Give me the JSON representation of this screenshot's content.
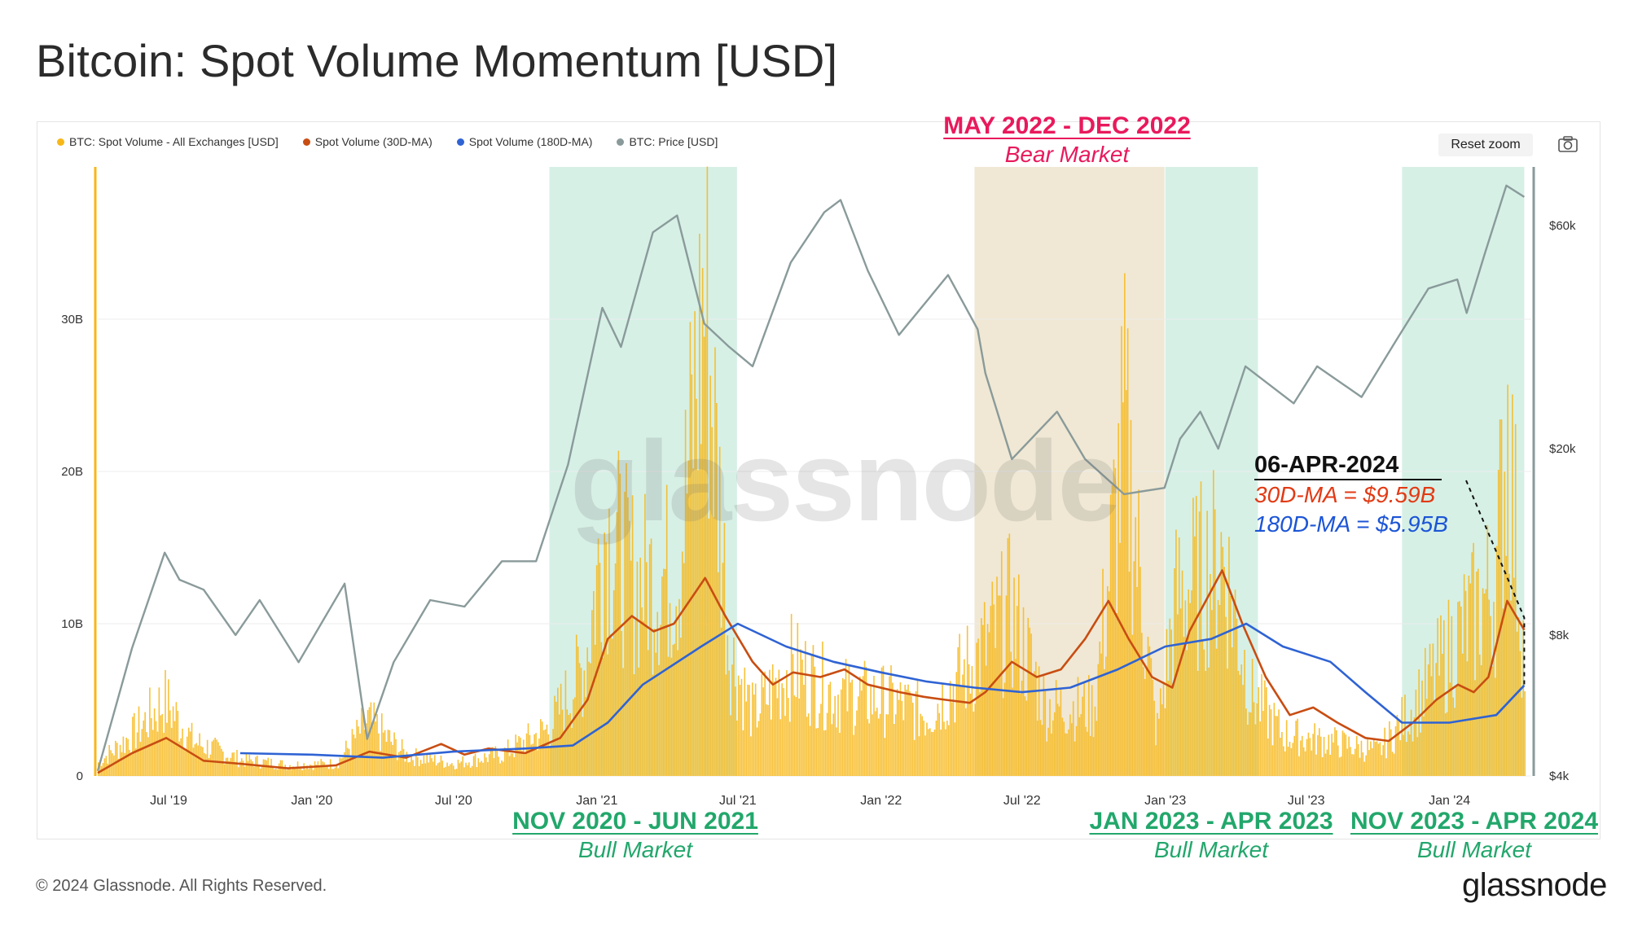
{
  "title": "Bitcoin: Spot Volume Momentum [USD]",
  "legend": [
    {
      "label": "BTC: Spot Volume - All Exchanges [USD]",
      "color": "#f7b718"
    },
    {
      "label": "Spot Volume (30D-MA)",
      "color": "#c84d12"
    },
    {
      "label": "Spot Volume (180D-MA)",
      "color": "#2f63d4"
    },
    {
      "label": "BTC: Price [USD]",
      "color": "#8a9a9a"
    }
  ],
  "controls": {
    "reset_zoom": "Reset zoom",
    "camera_icon": "camera-icon"
  },
  "watermark": "glassnode",
  "annotations": {
    "bear": {
      "head": "MAY 2022 - DEC 2022",
      "sub": "Bear Market"
    },
    "bull1": {
      "head": "NOV 2020 - JUN 2021",
      "sub": "Bull Market"
    },
    "bull2": {
      "head": "JAN 2023 - APR 2023",
      "sub": "Bull Market"
    },
    "bull3": {
      "head": "NOV 2023 - APR 2024",
      "sub": "Bull Market"
    }
  },
  "callout": {
    "date": "06-APR-2024",
    "ma30": "30D-MA = $9.59B",
    "ma180": "180D-MA = $5.95B"
  },
  "footer": {
    "copyright": "© 2024 Glassnode. All Rights Reserved.",
    "brand": "glassnode"
  },
  "chart_data": {
    "type": "line",
    "title": "Bitcoin: Spot Volume Momentum [USD]",
    "x_range": [
      "2019-04-01",
      "2024-04-15"
    ],
    "x_ticks": [
      {
        "label": "Jul '19",
        "date": "2019-07-01"
      },
      {
        "label": "Jan '20",
        "date": "2020-01-01"
      },
      {
        "label": "Jul '20",
        "date": "2020-07-01"
      },
      {
        "label": "Jan '21",
        "date": "2021-01-01"
      },
      {
        "label": "Jul '21",
        "date": "2021-07-01"
      },
      {
        "label": "Jan '22",
        "date": "2022-01-01"
      },
      {
        "label": "Jul '22",
        "date": "2022-07-01"
      },
      {
        "label": "Jan '23",
        "date": "2023-01-01"
      },
      {
        "label": "Jul '23",
        "date": "2023-07-01"
      },
      {
        "label": "Jan '24",
        "date": "2024-01-01"
      }
    ],
    "y_left": {
      "ticks": [
        "0",
        "10B",
        "20B",
        "30B"
      ],
      "values": [
        0,
        10000000000,
        20000000000,
        30000000000
      ],
      "ylim": [
        0,
        40000000000
      ]
    },
    "y_right": {
      "scale": "log",
      "ticks": [
        "$4k",
        "$8k",
        "$20k",
        "$60k"
      ],
      "values": [
        4000,
        8000,
        20000,
        60000
      ],
      "ylim": [
        4000,
        80000
      ]
    },
    "regions": [
      {
        "start": "2020-11-01",
        "end": "2021-06-30",
        "kind": "bull",
        "color": "#d6f0e6"
      },
      {
        "start": "2022-05-01",
        "end": "2022-12-31",
        "kind": "bear",
        "color": "#f0e8d4"
      },
      {
        "start": "2023-01-01",
        "end": "2023-04-30",
        "kind": "bull",
        "color": "#d6f0e6"
      },
      {
        "start": "2023-11-01",
        "end": "2024-04-06",
        "kind": "bull",
        "color": "#d6f0e6"
      }
    ],
    "series": [
      {
        "name": "BTC: Spot Volume - All Exchanges [USD]",
        "axis": "left",
        "color": "#f7b718",
        "points": [
          [
            "2019-04-01",
            1000000000.0
          ],
          [
            "2019-05-15",
            3000000000.0
          ],
          [
            "2019-06-25",
            5500000000.0
          ],
          [
            "2019-08-01",
            2500000000.0
          ],
          [
            "2019-10-01",
            1200000000.0
          ],
          [
            "2019-12-01",
            800000000.0
          ],
          [
            "2020-02-01",
            900000000.0
          ],
          [
            "2020-03-12",
            4000000000.0
          ],
          [
            "2020-05-01",
            1500000000.0
          ],
          [
            "2020-07-01",
            900000000.0
          ],
          [
            "2020-09-01",
            1600000000.0
          ],
          [
            "2020-11-01",
            3500000000.0
          ],
          [
            "2020-12-15",
            8000000000.0
          ],
          [
            "2021-01-10",
            18000000000.0
          ],
          [
            "2021-02-20",
            14000000000.0
          ],
          [
            "2021-04-15",
            15000000000.0
          ],
          [
            "2021-05-19",
            35000000000.0
          ],
          [
            "2021-06-20",
            9000000000.0
          ],
          [
            "2021-07-20",
            4500000000.0
          ],
          [
            "2021-09-07",
            8000000000.0
          ],
          [
            "2021-11-01",
            6000000000.0
          ],
          [
            "2022-01-10",
            5500000000.0
          ],
          [
            "2022-03-01",
            4500000000.0
          ],
          [
            "2022-05-10",
            9000000000.0
          ],
          [
            "2022-06-15",
            12000000000.0
          ],
          [
            "2022-08-01",
            5000000000.0
          ],
          [
            "2022-10-01",
            5000000000.0
          ],
          [
            "2022-11-09",
            25000000000.0
          ],
          [
            "2022-12-20",
            3000000000.0
          ],
          [
            "2023-01-15",
            13000000000.0
          ],
          [
            "2023-03-15",
            16000000000.0
          ],
          [
            "2023-04-20",
            6000000000.0
          ],
          [
            "2023-06-01",
            3000000000.0
          ],
          [
            "2023-08-01",
            2500000000.0
          ],
          [
            "2023-10-01",
            1800000000.0
          ],
          [
            "2023-11-15",
            5000000000.0
          ],
          [
            "2024-01-11",
            10000000000.0
          ],
          [
            "2024-02-28",
            14000000000.0
          ],
          [
            "2024-03-15",
            26000000000.0
          ],
          [
            "2024-04-06",
            8000000000.0
          ]
        ]
      },
      {
        "name": "Spot Volume (30D-MA)",
        "axis": "left",
        "color": "#c84d12",
        "points": [
          [
            "2019-04-01",
            200000000.0
          ],
          [
            "2019-05-15",
            1500000000.0
          ],
          [
            "2019-06-28",
            2500000000.0
          ],
          [
            "2019-08-15",
            1000000000.0
          ],
          [
            "2019-10-01",
            800000000.0
          ],
          [
            "2019-12-01",
            500000000.0
          ],
          [
            "2020-02-01",
            700000000.0
          ],
          [
            "2020-03-15",
            1600000000.0
          ],
          [
            "2020-05-01",
            1200000000.0
          ],
          [
            "2020-06-15",
            2100000000.0
          ],
          [
            "2020-07-15",
            1400000000.0
          ],
          [
            "2020-08-15",
            1800000000.0
          ],
          [
            "2020-10-01",
            1500000000.0
          ],
          [
            "2020-11-15",
            2500000000.0
          ],
          [
            "2020-12-20",
            5000000000.0
          ],
          [
            "2021-01-15",
            9000000000.0
          ],
          [
            "2021-02-15",
            10500000000.0
          ],
          [
            "2021-03-15",
            9500000000.0
          ],
          [
            "2021-04-10",
            10000000000.0
          ],
          [
            "2021-05-20",
            13000000000.0
          ],
          [
            "2021-06-15",
            10500000000.0
          ],
          [
            "2021-07-20",
            7500000000.0
          ],
          [
            "2021-08-15",
            6000000000.0
          ],
          [
            "2021-09-10",
            6800000000.0
          ],
          [
            "2021-10-15",
            6500000000.0
          ],
          [
            "2021-11-15",
            7000000000.0
          ],
          [
            "2021-12-15",
            6000000000.0
          ],
          [
            "2022-01-25",
            5500000000.0
          ],
          [
            "2022-02-25",
            5200000000.0
          ],
          [
            "2022-03-25",
            5000000000.0
          ],
          [
            "2022-04-25",
            4800000000.0
          ],
          [
            "2022-05-15",
            5500000000.0
          ],
          [
            "2022-06-18",
            7500000000.0
          ],
          [
            "2022-07-20",
            6500000000.0
          ],
          [
            "2022-08-20",
            7000000000.0
          ],
          [
            "2022-09-20",
            9000000000.0
          ],
          [
            "2022-10-20",
            11500000000.0
          ],
          [
            "2022-11-15",
            9000000000.0
          ],
          [
            "2022-12-15",
            6500000000.0
          ],
          [
            "2023-01-10",
            5800000000.0
          ],
          [
            "2023-02-01",
            9500000000.0
          ],
          [
            "2023-03-15",
            13500000000.0
          ],
          [
            "2023-04-10",
            10000000000.0
          ],
          [
            "2023-05-10",
            6500000000.0
          ],
          [
            "2023-06-10",
            4000000000.0
          ],
          [
            "2023-07-10",
            4500000000.0
          ],
          [
            "2023-08-10",
            3500000000.0
          ],
          [
            "2023-09-15",
            2500000000.0
          ],
          [
            "2023-10-15",
            2300000000.0
          ],
          [
            "2023-11-15",
            3500000000.0
          ],
          [
            "2023-12-15",
            5000000000.0
          ],
          [
            "2024-01-12",
            6000000000.0
          ],
          [
            "2024-02-01",
            5500000000.0
          ],
          [
            "2024-02-20",
            6500000000.0
          ],
          [
            "2024-03-15",
            11500000000.0
          ],
          [
            "2024-04-06",
            9590000000.0
          ]
        ]
      },
      {
        "name": "Spot Volume (180D-MA)",
        "axis": "left",
        "color": "#2f63d4",
        "points": [
          [
            "2019-10-01",
            1500000000.0
          ],
          [
            "2020-01-01",
            1400000000.0
          ],
          [
            "2020-04-01",
            1200000000.0
          ],
          [
            "2020-07-01",
            1600000000.0
          ],
          [
            "2020-10-01",
            1800000000.0
          ],
          [
            "2020-12-01",
            2000000000.0
          ],
          [
            "2021-01-15",
            3500000000.0
          ],
          [
            "2021-03-01",
            6000000000.0
          ],
          [
            "2021-05-15",
            8500000000.0
          ],
          [
            "2021-07-01",
            10000000000.0
          ],
          [
            "2021-09-01",
            8500000000.0
          ],
          [
            "2021-11-01",
            7500000000.0
          ],
          [
            "2022-01-01",
            6800000000.0
          ],
          [
            "2022-03-01",
            6200000000.0
          ],
          [
            "2022-05-01",
            5800000000.0
          ],
          [
            "2022-07-01",
            5500000000.0
          ],
          [
            "2022-09-01",
            5800000000.0
          ],
          [
            "2022-11-01",
            7000000000.0
          ],
          [
            "2023-01-01",
            8500000000.0
          ],
          [
            "2023-03-01",
            9000000000.0
          ],
          [
            "2023-04-15",
            10000000000.0
          ],
          [
            "2023-06-01",
            8500000000.0
          ],
          [
            "2023-08-01",
            7500000000.0
          ],
          [
            "2023-09-15",
            5500000000.0
          ],
          [
            "2023-11-01",
            3500000000.0
          ],
          [
            "2024-01-01",
            3500000000.0
          ],
          [
            "2024-03-01",
            4000000000.0
          ],
          [
            "2024-04-06",
            5950000000.0
          ]
        ]
      },
      {
        "name": "BTC: Price [USD]",
        "axis": "right",
        "color": "#8a9a9a",
        "points": [
          [
            "2019-04-01",
            4100
          ],
          [
            "2019-05-15",
            7500
          ],
          [
            "2019-06-26",
            12000
          ],
          [
            "2019-07-15",
            10500
          ],
          [
            "2019-08-15",
            10000
          ],
          [
            "2019-09-25",
            8000
          ],
          [
            "2019-10-26",
            9500
          ],
          [
            "2019-12-15",
            7000
          ],
          [
            "2020-02-12",
            10300
          ],
          [
            "2020-03-12",
            4800
          ],
          [
            "2020-04-15",
            7000
          ],
          [
            "2020-06-01",
            9500
          ],
          [
            "2020-07-15",
            9200
          ],
          [
            "2020-09-01",
            11500
          ],
          [
            "2020-10-15",
            11500
          ],
          [
            "2020-11-25",
            18500
          ],
          [
            "2021-01-08",
            40000
          ],
          [
            "2021-02-01",
            33000
          ],
          [
            "2021-03-14",
            58000
          ],
          [
            "2021-04-14",
            63000
          ],
          [
            "2021-05-19",
            37000
          ],
          [
            "2021-06-20",
            33000
          ],
          [
            "2021-07-20",
            30000
          ],
          [
            "2021-09-07",
            50000
          ],
          [
            "2021-10-20",
            64000
          ],
          [
            "2021-11-10",
            68000
          ],
          [
            "2021-12-15",
            48000
          ],
          [
            "2022-01-24",
            35000
          ],
          [
            "2022-03-28",
            47000
          ],
          [
            "2022-05-05",
            36000
          ],
          [
            "2022-05-15",
            29000
          ],
          [
            "2022-06-18",
            19000
          ],
          [
            "2022-08-15",
            24000
          ],
          [
            "2022-09-20",
            19000
          ],
          [
            "2022-11-09",
            16000
          ],
          [
            "2022-12-31",
            16500
          ],
          [
            "2023-01-20",
            21000
          ],
          [
            "2023-02-15",
            24000
          ],
          [
            "2023-03-10",
            20000
          ],
          [
            "2023-04-14",
            30000
          ],
          [
            "2023-06-15",
            25000
          ],
          [
            "2023-07-15",
            30000
          ],
          [
            "2023-09-10",
            25800
          ],
          [
            "2023-10-24",
            34000
          ],
          [
            "2023-12-05",
            44000
          ],
          [
            "2024-01-11",
            46000
          ],
          [
            "2024-01-23",
            39000
          ],
          [
            "2024-02-15",
            52000
          ],
          [
            "2024-03-14",
            73000
          ],
          [
            "2024-04-06",
            69000
          ]
        ]
      }
    ]
  }
}
